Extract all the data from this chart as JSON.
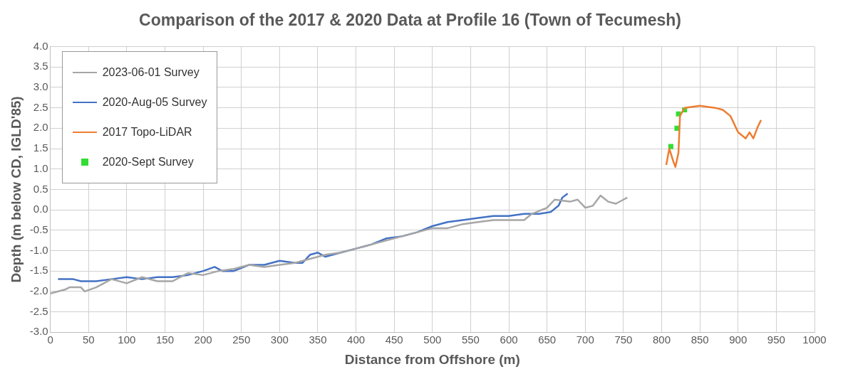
{
  "chart_data": {
    "type": "line",
    "title": "Comparison of the 2017 & 2020 Data at Profile 16 (Town of Tecumesh)",
    "xlabel": "Distance from Offshore (m)",
    "ylabel": "Depth (m below CD, IGLD'85)",
    "xlim": [
      0,
      1000
    ],
    "xticks": [
      0,
      50,
      100,
      150,
      200,
      250,
      300,
      350,
      400,
      450,
      500,
      550,
      600,
      650,
      700,
      750,
      800,
      850,
      900,
      950,
      1000
    ],
    "ylim": [
      -3,
      4
    ],
    "yticks": [
      {
        "value": -3,
        "label": "-3.0"
      },
      {
        "value": -2.5,
        "label": "-2.5"
      },
      {
        "value": -2,
        "label": "-2.0"
      },
      {
        "value": -1.5,
        "label": "-1.5"
      },
      {
        "value": -1,
        "label": "-1.0"
      },
      {
        "value": -0.5,
        "label": "-0.5"
      },
      {
        "value": 0,
        "label": "0.0"
      },
      {
        "value": 0.5,
        "label": "0.5"
      },
      {
        "value": 1,
        "label": "1.0"
      },
      {
        "value": 1.5,
        "label": "1.5"
      },
      {
        "value": 2,
        "label": "2.0"
      },
      {
        "value": 2.5,
        "label": "2.5"
      },
      {
        "value": 3,
        "label": "3.0"
      },
      {
        "value": 3.5,
        "label": "3.5"
      },
      {
        "value": 4,
        "label": "4.0"
      }
    ],
    "grid": true,
    "legend": "top left",
    "marker": "none",
    "line_style": "solid",
    "series": [
      {
        "name": "2023-06-01 Survey",
        "color": "#a6a6a6",
        "x": [
          0,
          20,
          25,
          40,
          45,
          60,
          80,
          100,
          120,
          140,
          160,
          180,
          200,
          220,
          240,
          260,
          280,
          300,
          320,
          340,
          360,
          380,
          400,
          420,
          440,
          460,
          480,
          500,
          520,
          540,
          560,
          580,
          600,
          620,
          630,
          650,
          660,
          680,
          690,
          700,
          710,
          720,
          730,
          740,
          750,
          755
        ],
        "values": [
          -2.05,
          -1.95,
          -1.9,
          -1.9,
          -2.0,
          -1.9,
          -1.7,
          -1.8,
          -1.65,
          -1.75,
          -1.75,
          -1.55,
          -1.6,
          -1.5,
          -1.45,
          -1.35,
          -1.4,
          -1.35,
          -1.3,
          -1.2,
          -1.1,
          -1.05,
          -0.95,
          -0.85,
          -0.75,
          -0.65,
          -0.55,
          -0.45,
          -0.45,
          -0.35,
          -0.3,
          -0.25,
          -0.25,
          -0.25,
          -0.1,
          0.05,
          0.25,
          0.2,
          0.25,
          0.05,
          0.1,
          0.35,
          0.2,
          0.15,
          0.25,
          0.3
        ]
      },
      {
        "name": "2020-Aug-05 Survey",
        "color": "#4472c4",
        "x": [
          10,
          30,
          40,
          60,
          80,
          100,
          120,
          140,
          160,
          180,
          200,
          215,
          225,
          240,
          260,
          280,
          300,
          320,
          330,
          340,
          350,
          360,
          380,
          400,
          420,
          440,
          460,
          480,
          500,
          520,
          540,
          560,
          580,
          600,
          620,
          640,
          655,
          665,
          670,
          677
        ],
        "values": [
          -1.7,
          -1.7,
          -1.75,
          -1.75,
          -1.7,
          -1.65,
          -1.7,
          -1.65,
          -1.65,
          -1.6,
          -1.5,
          -1.4,
          -1.5,
          -1.5,
          -1.35,
          -1.35,
          -1.25,
          -1.3,
          -1.3,
          -1.1,
          -1.05,
          -1.15,
          -1.05,
          -0.95,
          -0.85,
          -0.7,
          -0.65,
          -0.55,
          -0.4,
          -0.3,
          -0.25,
          -0.2,
          -0.15,
          -0.15,
          -0.1,
          -0.1,
          -0.05,
          0.1,
          0.3,
          0.4
        ]
      },
      {
        "name": "2017 Topo-LiDAR",
        "color": "#ed7d31",
        "x": [
          806,
          810,
          815,
          818,
          822,
          824,
          830,
          850,
          870,
          880,
          890,
          900,
          910,
          915,
          920,
          925,
          930
        ],
        "values": [
          1.1,
          1.5,
          1.2,
          1.05,
          1.4,
          2.3,
          2.5,
          2.55,
          2.5,
          2.45,
          2.3,
          1.9,
          1.75,
          1.9,
          1.75,
          2.0,
          2.2
        ]
      },
      {
        "name": "2020-Sept Survey",
        "type": "scatter",
        "marker": "square",
        "color": "#33dd33",
        "x": [
          812,
          820,
          822,
          830
        ],
        "values": [
          1.55,
          2.0,
          2.35,
          2.45
        ]
      }
    ]
  }
}
